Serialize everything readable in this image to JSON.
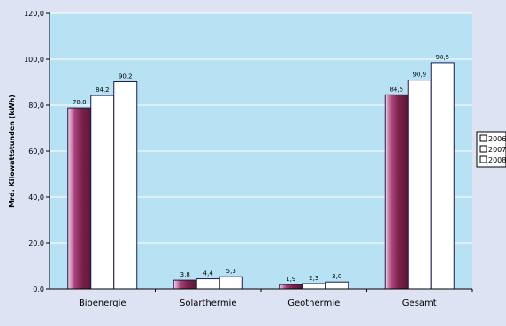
{
  "chart_data": {
    "type": "bar",
    "categories": [
      "Bioenergie",
      "Solarthermie",
      "Geothermie",
      "Gesamt"
    ],
    "series": [
      {
        "name": "2006",
        "values": [
          78.8,
          3.8,
          1.9,
          84.5
        ],
        "value_labels": [
          "78,8",
          "3,8",
          "1,9",
          "84,5"
        ],
        "color": "#7a2248"
      },
      {
        "name": "2007",
        "values": [
          84.2,
          4.4,
          2.3,
          90.9
        ],
        "value_labels": [
          "84,2",
          "4,4",
          "2,3",
          "90,9"
        ],
        "color": "#ffffff"
      },
      {
        "name": "2008",
        "values": [
          90.2,
          5.3,
          3.0,
          98.5
        ],
        "value_labels": [
          "90,2",
          "5,3",
          "3,0",
          "98,5"
        ],
        "color": "#ffffff"
      }
    ],
    "title": "",
    "xlabel": "",
    "ylabel": "Mrd. Kilowattstunden (kWh)",
    "ylim": [
      0,
      120
    ],
    "yticks": [
      0,
      20,
      40,
      60,
      80,
      100,
      120
    ],
    "ytick_labels": [
      "0,0",
      "20,0",
      "40,0",
      "60,0",
      "80,0",
      "100,0",
      "120,0"
    ],
    "grid": true,
    "legend": "right",
    "plot_background": "#b7e2f4",
    "page_background": "#dde3f2"
  }
}
